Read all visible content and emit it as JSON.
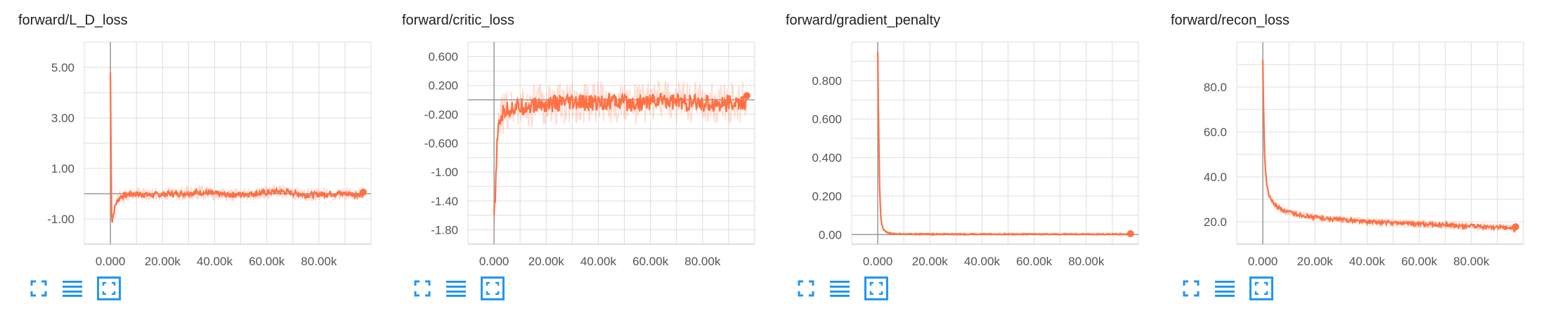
{
  "chart_data": [
    {
      "title": "forward/L_D_loss",
      "type": "line",
      "xlim": [
        -10000,
        100000
      ],
      "ylim": [
        -2.0,
        6.0
      ],
      "x_ticks": [
        0,
        20000,
        40000,
        60000,
        80000
      ],
      "x_tick_labels": [
        "0.000",
        "20.00k",
        "40.00k",
        "60.00k",
        "80.00k"
      ],
      "y_ticks": [
        5.0,
        3.0,
        1.0,
        -1.0
      ],
      "y_tick_labels": [
        "5.00",
        "3.00",
        "1.00",
        "-1.00"
      ],
      "grid": true,
      "series": [
        {
          "color": "#ff7043",
          "x": [
            0,
            500,
            1000,
            2000,
            4000,
            8000,
            15000,
            25000,
            35000,
            45000,
            55000,
            65000,
            75000,
            85000,
            92000,
            97000
          ],
          "y": [
            4.8,
            -1.2,
            -0.9,
            -0.4,
            -0.1,
            0.0,
            -0.05,
            0.0,
            0.05,
            -0.05,
            0.0,
            0.1,
            -0.05,
            0.0,
            0.0,
            -0.05
          ],
          "noise": 0.12,
          "shadow_noise": 0.28
        }
      ]
    },
    {
      "title": "forward/critic_loss",
      "type": "line",
      "xlim": [
        -10000,
        100000
      ],
      "ylim": [
        -2.0,
        0.8
      ],
      "x_ticks": [
        0,
        20000,
        40000,
        60000,
        80000
      ],
      "x_tick_labels": [
        "0.000",
        "20.00k",
        "40.00k",
        "60.00k",
        "80.00k"
      ],
      "y_ticks": [
        0.6,
        0.2,
        -0.2,
        -0.6,
        -1.0,
        -1.4,
        -1.8
      ],
      "y_tick_labels": [
        "0.600",
        "0.200",
        "-0.200",
        "-0.600",
        "-1.00",
        "-1.40",
        "-1.80"
      ],
      "grid": true,
      "series": [
        {
          "color": "#ff7043",
          "x": [
            0,
            500,
            1000,
            2000,
            4000,
            8000,
            15000,
            25000,
            35000,
            45000,
            55000,
            65000,
            75000,
            85000,
            92000,
            97000
          ],
          "y": [
            -1.6,
            -1.4,
            -0.7,
            -0.3,
            -0.15,
            -0.1,
            -0.08,
            -0.05,
            -0.05,
            -0.02,
            -0.05,
            0.0,
            -0.05,
            -0.05,
            -0.05,
            -0.05
          ],
          "noise": 0.12,
          "shadow_noise": 0.3
        }
      ]
    },
    {
      "title": "forward/gradient_penalty",
      "type": "line",
      "xlim": [
        -10000,
        100000
      ],
      "ylim": [
        -0.05,
        1.0
      ],
      "x_ticks": [
        0,
        20000,
        40000,
        60000,
        80000
      ],
      "x_tick_labels": [
        "0.000",
        "20.00k",
        "40.00k",
        "60.00k",
        "80.00k"
      ],
      "y_ticks": [
        0.8,
        0.6,
        0.4,
        0.2,
        0.0
      ],
      "y_tick_labels": [
        "0.800",
        "0.600",
        "0.400",
        "0.200",
        "0.00"
      ],
      "grid": true,
      "series": [
        {
          "color": "#ff7043",
          "x": [
            0,
            300,
            700,
            1200,
            2000,
            3000,
            5000,
            10000,
            20000,
            40000,
            60000,
            80000,
            97000
          ],
          "y": [
            0.95,
            0.6,
            0.25,
            0.08,
            0.03,
            0.015,
            0.005,
            0.003,
            0.002,
            0.002,
            0.002,
            0.002,
            0.002
          ],
          "noise": 0.003,
          "shadow_noise": 0.006
        }
      ]
    },
    {
      "title": "forward/recon_loss",
      "type": "line",
      "xlim": [
        -10000,
        100000
      ],
      "ylim": [
        10.0,
        100.0
      ],
      "x_ticks": [
        0,
        20000,
        40000,
        60000,
        80000
      ],
      "x_tick_labels": [
        "0.000",
        "20.00k",
        "40.00k",
        "60.00k",
        "80.00k"
      ],
      "y_ticks": [
        80.0,
        60.0,
        40.0,
        20.0
      ],
      "y_tick_labels": [
        "80.0",
        "60.0",
        "40.0",
        "20.0"
      ],
      "grid": true,
      "series": [
        {
          "color": "#ff7043",
          "x": [
            0,
            300,
            700,
            1200,
            2000,
            3500,
            5000,
            8000,
            12000,
            20000,
            30000,
            40000,
            50000,
            60000,
            70000,
            80000,
            90000,
            97000
          ],
          "y": [
            92,
            70,
            50,
            40,
            33,
            29,
            27,
            25,
            23.5,
            22,
            21,
            20,
            19.5,
            19,
            18.5,
            18,
            17.5,
            17
          ],
          "noise": 0.9,
          "shadow_noise": 1.8
        }
      ]
    }
  ],
  "toolbar": {
    "icons": [
      "fullscreen-icon",
      "log-scale-icon",
      "fit-domain-icon"
    ],
    "accent": "#2196f3"
  }
}
